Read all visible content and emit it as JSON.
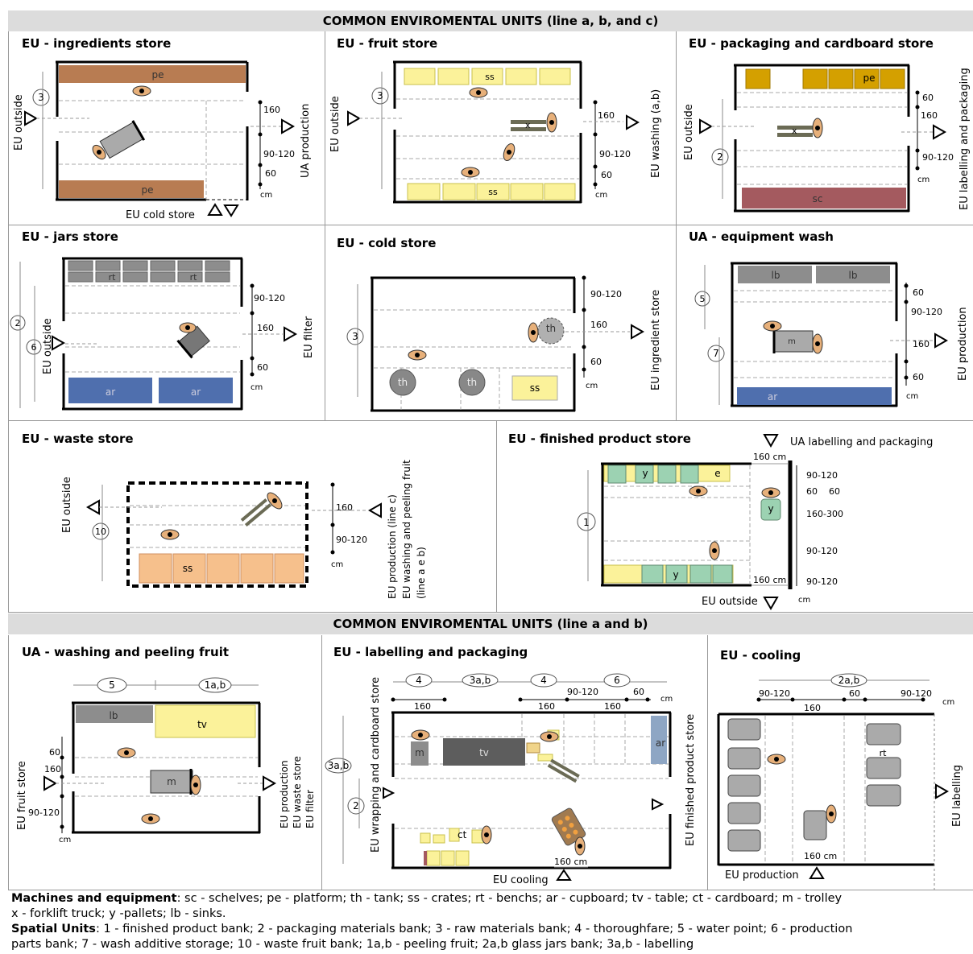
{
  "bands": {
    "top": "COMMON ENVIROMENTAL UNITS  (line a, b, and c)",
    "mid": "COMMON ENVIROMENTAL UNITS  (line a and b)"
  },
  "panels": {
    "ingredients": {
      "title": "EU -  ingredients store",
      "pe": "pe",
      "d160": "160",
      "d90": "90-120",
      "d60": "60",
      "cm": "cm",
      "left": "EU outside",
      "right": "UA production",
      "bottom": "EU cold store",
      "n3": "3"
    },
    "fruit": {
      "title": "EU - fruit store",
      "ss": "ss",
      "x": "x",
      "d160": "160",
      "d90": "90-120",
      "d60": "60",
      "cm": "cm",
      "left": "EU outside",
      "right": "EU washing (a,b)",
      "n3": "3"
    },
    "packaging": {
      "title": "EU - packaging and cardboard store",
      "pe": "pe",
      "sc": "sc",
      "x": "x",
      "d60": "60",
      "d160": "160",
      "d90": "90-120",
      "cm": "cm",
      "left": "EU outside",
      "right": "EU labelling and packaging",
      "n2": "2"
    },
    "jars": {
      "title": "EU - jars store",
      "rt": "rt",
      "ar": "ar",
      "d90": "90-120",
      "d160": "160",
      "d60": "60",
      "cm": "cm",
      "left": "EU outside",
      "right": "EU filter",
      "n2": "2",
      "n6": "6"
    },
    "cold": {
      "title": "EU - cold store",
      "th": "th",
      "ss": "ss",
      "d90": "90-120",
      "d160": "160",
      "d60": "60",
      "cm": "cm",
      "right": "EU ingredient store",
      "n3": "3"
    },
    "wash": {
      "title": "UA - equipment wash",
      "lb": "lb",
      "m": "m",
      "ar": "ar",
      "d60": "60",
      "d90": "90-120",
      "d160": "160",
      "cm": "cm",
      "right": "EU production",
      "n5": "5",
      "n7": "7"
    },
    "waste": {
      "title": "EU -  waste store",
      "ss": "ss",
      "d160": "160",
      "d90": "90-120",
      "cm": "cm",
      "left": "EU outside",
      "r1": "EU production (line c)",
      "r2": "EU washing and peeling fruit",
      "r3": "(line a e b)",
      "n10": "10"
    },
    "finished": {
      "title": "EU - finished product store",
      "top": "UA labelling and packaging",
      "bottom": "EU outside",
      "y": "y",
      "e": "e",
      "d160cm": "160 cm",
      "d90": "90-120",
      "d60": "60",
      "d160300": "160-300",
      "cm": "cm",
      "n1": "1"
    },
    "washpeel": {
      "title": "UA - washing and peeling fruit",
      "lb": "lb",
      "tv": "tv",
      "m": "m",
      "n5": "5",
      "n1ab": "1a,b",
      "d60": "60",
      "d160": "160",
      "d90": "90-120",
      "cm": "cm",
      "left": "EU fruit store",
      "r1": "EU production",
      "r2": "EU waste store",
      "r3": "EU filter"
    },
    "labelling": {
      "title": "EU - labelling and packaging",
      "n4": "4",
      "n3ab": "3a,b",
      "n6": "6",
      "n2": "2",
      "d160": "160",
      "d90": "90-120",
      "d60": "60",
      "cm": "cm",
      "m": "m",
      "tv": "tv",
      "ar": "ar",
      "ct": "ct",
      "d160cm": "160 cm",
      "left": "EU wrapping and cardboard store",
      "right": "EU finished product store",
      "bottom": "EU cooling"
    },
    "cooling": {
      "title": "EU - cooling",
      "n2ab": "2a,b",
      "d90": "90-120",
      "d60": "60",
      "d160": "160",
      "cm": "cm",
      "rt": "rt",
      "d160cm": "160 cm",
      "right": "EU labelling",
      "bottom": "EU production"
    }
  },
  "legend": {
    "machines_label": "Machines and equipment",
    "machines_text": ": sc - schelves; pe - platform; th - tank; ss - crates; rt - benchs; ar - cupboard; tv - table; ct - cardboard; m - trolley",
    "machines_text2": "x - forklift truck; y -pallets; lb - sinks.",
    "spatial_label": "Spatial Units",
    "spatial_text": ": 1 - finished product bank; 2 - packaging materials bank; 3 - raw materials bank;  4 - thoroughfare; 5 - water point; 6 - production",
    "spatial_text2": "parts bank; 7 - wash additive storage; 10 - waste fruit bank; 1a,b - peeling fruit; 2a,b glass jars bank; 3a,b - labelling"
  }
}
